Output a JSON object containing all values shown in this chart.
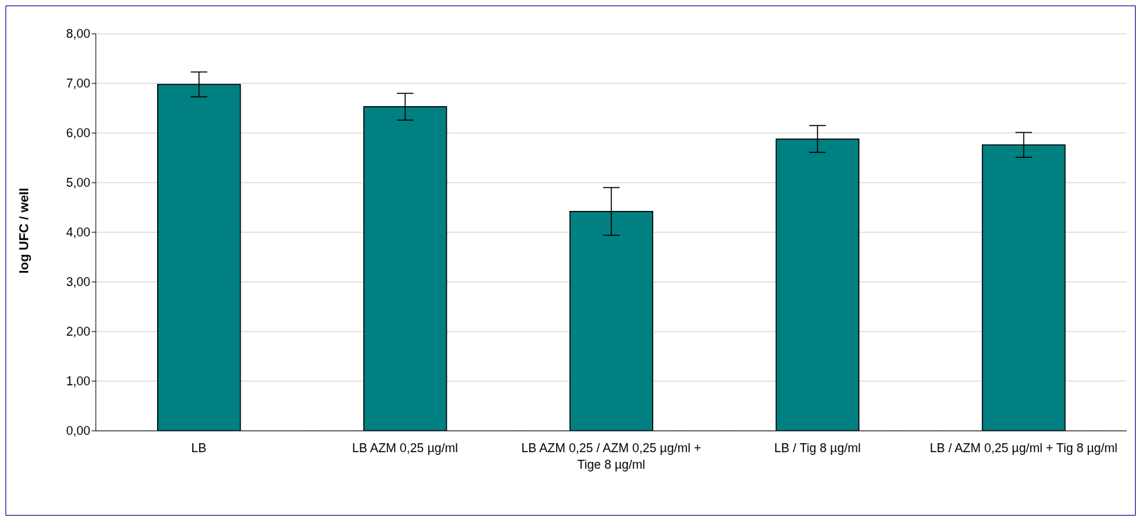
{
  "chart_data": {
    "type": "bar",
    "ylabel": "log UFC / well",
    "categories": [
      "LB",
      "LB AZM 0,25  µg/ml",
      "LB AZM 0,25 / AZM 0,25 µg/ml +  Tige 8 µg/ml",
      "LB / Tig 8 µg/ml",
      "LB / AZM 0,25  µg/ml + Tig 8 µg/ml"
    ],
    "values": [
      6.98,
      6.53,
      4.42,
      5.88,
      5.76
    ],
    "errors": [
      0.25,
      0.27,
      0.48,
      0.27,
      0.25
    ],
    "color": "#008080",
    "ylim": [
      0,
      8
    ],
    "yticks": [
      {
        "value": 0,
        "label": "0,00"
      },
      {
        "value": 1,
        "label": "1,00"
      },
      {
        "value": 2,
        "label": "2,00"
      },
      {
        "value": 3,
        "label": "3,00"
      },
      {
        "value": 4,
        "label": "4,00"
      },
      {
        "value": 5,
        "label": "5,00"
      },
      {
        "value": 6,
        "label": "6,00"
      },
      {
        "value": 7,
        "label": "7,00"
      },
      {
        "value": 8,
        "label": "8,00"
      }
    ],
    "grid": "y",
    "legend": false
  }
}
